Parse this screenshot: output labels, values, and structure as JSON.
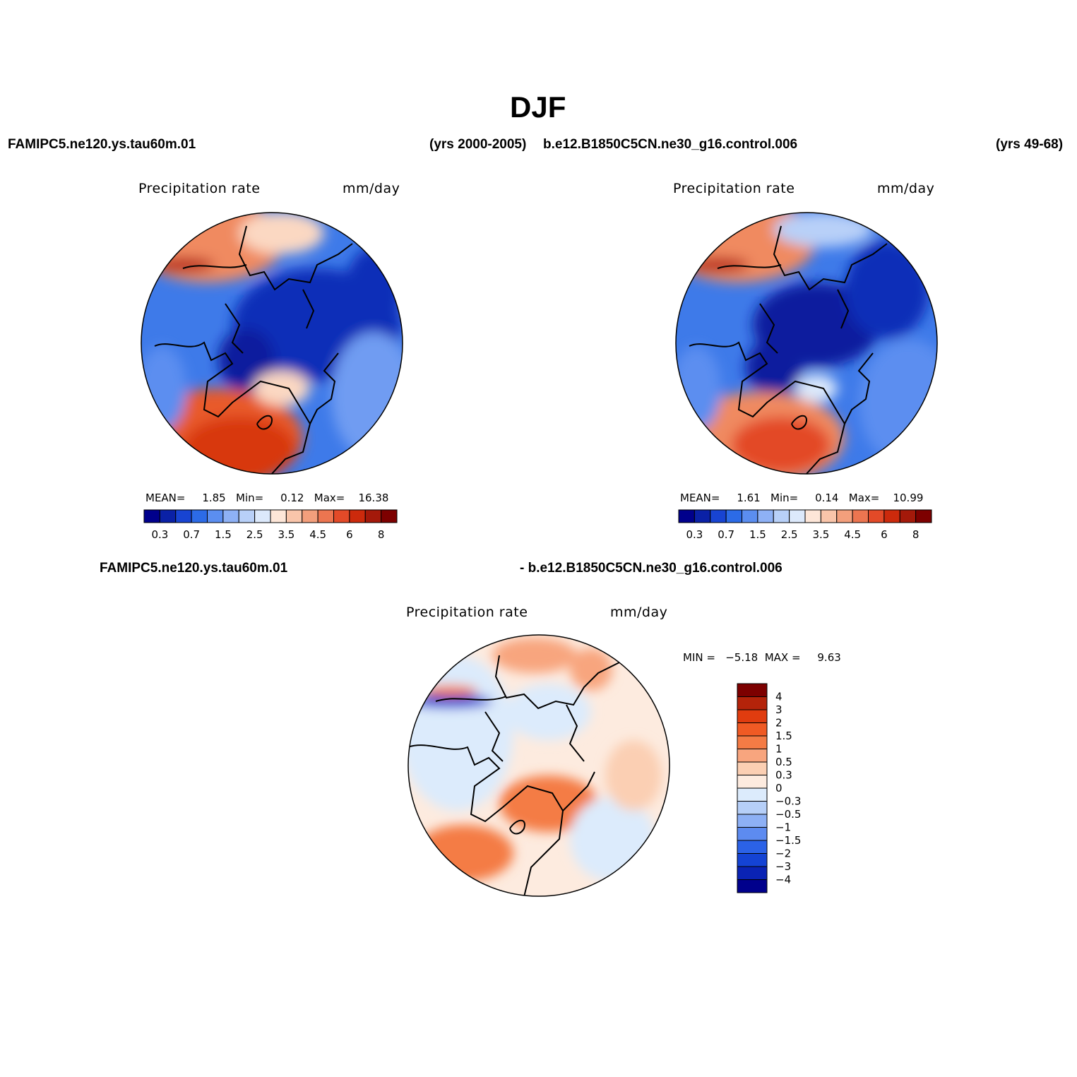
{
  "title": "DJF",
  "top_left": {
    "case": "FAMIPC5.ne120.ys.tau60m.01",
    "years": "(yrs 2000-2005)",
    "variable": "Precipitation rate",
    "units": "mm/day",
    "stats": {
      "mean_label": "MEAN=",
      "mean": "1.85",
      "min_label": "Min=",
      "min": "0.12",
      "max_label": "Max=",
      "max": "16.38"
    }
  },
  "top_right": {
    "case": "b.e12.B1850C5CN.ne30_g16.control.006",
    "years": "(yrs 49-68)",
    "variable": "Precipitation rate",
    "units": "mm/day",
    "stats": {
      "mean_label": "MEAN=",
      "mean": "1.61",
      "min_label": "Min=",
      "min": "0.14",
      "max_label": "Max=",
      "max": "10.99"
    }
  },
  "difference": {
    "case_a": "FAMIPC5.ne120.ys.tau60m.01",
    "case_b": "- b.e12.B1850C5CN.ne30_g16.control.006",
    "variable": "Precipitation rate",
    "units": "mm/day",
    "min_max": "MIN =   −5.18  MAX =     9.63"
  },
  "colorbar_top": {
    "colors": [
      "#00008c",
      "#0a21a6",
      "#1844d2",
      "#2c6be7",
      "#5b8ef0",
      "#8eb1f5",
      "#b8d0f8",
      "#dce9fb",
      "#fde6d8",
      "#f9c5aa",
      "#f39f7c",
      "#ec7550",
      "#e34a28",
      "#cc2a0c",
      "#a4190a",
      "#7d0000"
    ],
    "labels": [
      "0.3",
      "0.7",
      "1.5",
      "2.5",
      "3.5",
      "4.5",
      "6",
      "8"
    ]
  },
  "colorbar_diff": {
    "colors": [
      "#7d0000",
      "#b4230a",
      "#e03c0f",
      "#f05a24",
      "#f47b45",
      "#f8a57e",
      "#fbcfb3",
      "#fdebdf",
      "#dcebfc",
      "#b6cff8",
      "#8db0f5",
      "#5d8bf0",
      "#2b62e7",
      "#1443d4",
      "#0a23b4",
      "#00008c"
    ],
    "labels": [
      "4",
      "3",
      "2",
      "1.5",
      "1",
      "0.5",
      "0.3",
      "0",
      "−0.3",
      "−0.5",
      "−1",
      "−1.5",
      "−2",
      "−3",
      "−4"
    ]
  }
}
